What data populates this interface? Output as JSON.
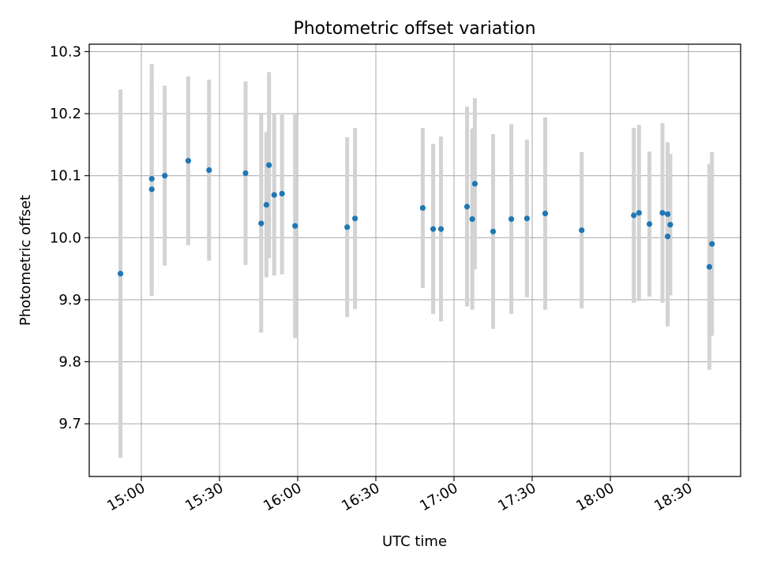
{
  "chart_data": {
    "type": "scatter",
    "title": "Photometric offset variation",
    "xlabel": "UTC time",
    "ylabel": "Photometric offset",
    "x_ticks": [
      "15:00",
      "15:30",
      "16:00",
      "16:30",
      "17:00",
      "17:30",
      "18:00",
      "18:30"
    ],
    "y_ticks": [
      "9.7",
      "9.8",
      "9.9",
      "10.0",
      "10.1",
      "10.2",
      "10.3"
    ],
    "xlim": [
      "14:40",
      "18:50"
    ],
    "ylim": [
      9.615,
      10.312
    ],
    "grid": true,
    "point_color": "#1f77b4",
    "errorbar_color": "#d3d3d3",
    "points": [
      {
        "x": "14:52",
        "y": 9.942,
        "err": 0.297
      },
      {
        "x": "15:04",
        "y": 10.095,
        "err": 0.185
      },
      {
        "x": "15:04",
        "y": 10.078,
        "err": 0.172
      },
      {
        "x": "15:09",
        "y": 10.1,
        "err": 0.145
      },
      {
        "x": "15:18",
        "y": 10.124,
        "err": 0.136
      },
      {
        "x": "15:26",
        "y": 10.109,
        "err": 0.146
      },
      {
        "x": "15:40",
        "y": 10.104,
        "err": 0.148
      },
      {
        "x": "15:46",
        "y": 10.023,
        "err": 0.176
      },
      {
        "x": "15:48",
        "y": 10.053,
        "err": 0.117
      },
      {
        "x": "15:49",
        "y": 10.117,
        "err": 0.15
      },
      {
        "x": "15:51",
        "y": 10.069,
        "err": 0.13
      },
      {
        "x": "15:54",
        "y": 10.071,
        "err": 0.13
      },
      {
        "x": "15:59",
        "y": 10.019,
        "err": 0.181
      },
      {
        "x": "16:19",
        "y": 10.017,
        "err": 0.145
      },
      {
        "x": "16:22",
        "y": 10.031,
        "err": 0.146
      },
      {
        "x": "16:48",
        "y": 10.048,
        "err": 0.129
      },
      {
        "x": "16:52",
        "y": 10.014,
        "err": 0.137
      },
      {
        "x": "16:55",
        "y": 10.014,
        "err": 0.149
      },
      {
        "x": "17:05",
        "y": 10.05,
        "err": 0.161
      },
      {
        "x": "17:07",
        "y": 10.03,
        "err": 0.146
      },
      {
        "x": "17:08",
        "y": 10.087,
        "err": 0.138
      },
      {
        "x": "17:15",
        "y": 10.01,
        "err": 0.157
      },
      {
        "x": "17:22",
        "y": 10.03,
        "err": 0.153
      },
      {
        "x": "17:28",
        "y": 10.031,
        "err": 0.127
      },
      {
        "x": "17:35",
        "y": 10.039,
        "err": 0.155
      },
      {
        "x": "17:49",
        "y": 10.012,
        "err": 0.126
      },
      {
        "x": "18:09",
        "y": 10.036,
        "err": 0.141
      },
      {
        "x": "18:11",
        "y": 10.04,
        "err": 0.142
      },
      {
        "x": "18:15",
        "y": 10.022,
        "err": 0.117
      },
      {
        "x": "18:20",
        "y": 10.04,
        "err": 0.145
      },
      {
        "x": "18:22",
        "y": 10.002,
        "err": 0.145
      },
      {
        "x": "18:22",
        "y": 10.038,
        "err": 0.116
      },
      {
        "x": "18:23",
        "y": 10.021,
        "err": 0.114
      },
      {
        "x": "18:38",
        "y": 9.953,
        "err": 0.166
      },
      {
        "x": "18:39",
        "y": 9.99,
        "err": 0.148
      }
    ]
  }
}
